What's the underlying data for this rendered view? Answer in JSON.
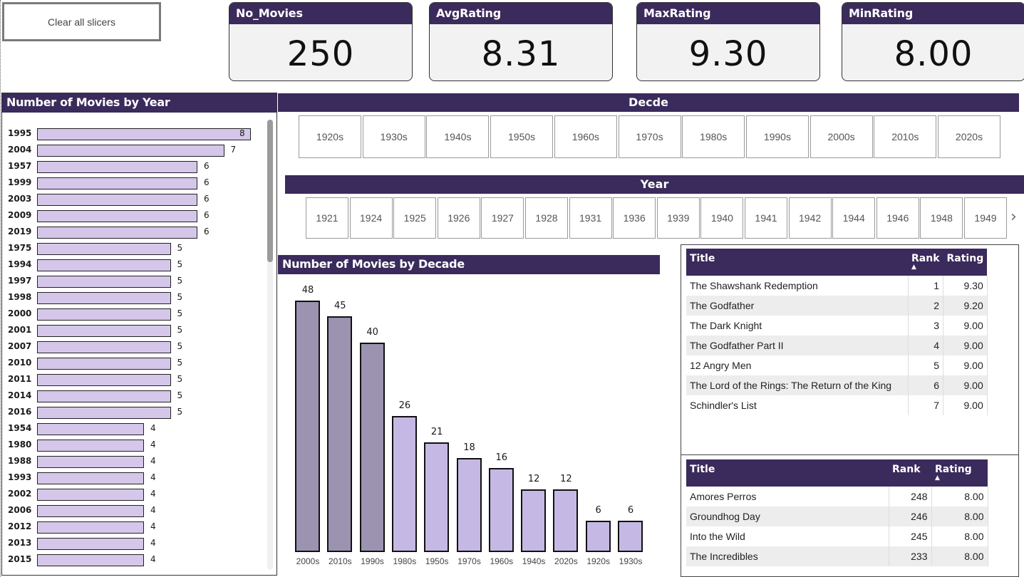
{
  "clear_button": "Clear all slicers",
  "kpis": [
    {
      "label": "No_Movies",
      "value": "250"
    },
    {
      "label": "AvgRating",
      "value": "8.31"
    },
    {
      "label": "MaxRating",
      "value": "9.30"
    },
    {
      "label": "MinRating",
      "value": "8.00"
    }
  ],
  "year_chart": {
    "title": "Number of Movies by Year",
    "rows": [
      {
        "year": "1995",
        "count": 8
      },
      {
        "year": "2004",
        "count": 7
      },
      {
        "year": "1957",
        "count": 6
      },
      {
        "year": "1999",
        "count": 6
      },
      {
        "year": "2003",
        "count": 6
      },
      {
        "year": "2009",
        "count": 6
      },
      {
        "year": "2019",
        "count": 6
      },
      {
        "year": "1975",
        "count": 5
      },
      {
        "year": "1994",
        "count": 5
      },
      {
        "year": "1997",
        "count": 5
      },
      {
        "year": "1998",
        "count": 5
      },
      {
        "year": "2000",
        "count": 5
      },
      {
        "year": "2001",
        "count": 5
      },
      {
        "year": "2007",
        "count": 5
      },
      {
        "year": "2010",
        "count": 5
      },
      {
        "year": "2011",
        "count": 5
      },
      {
        "year": "2014",
        "count": 5
      },
      {
        "year": "2016",
        "count": 5
      },
      {
        "year": "1954",
        "count": 4
      },
      {
        "year": "1980",
        "count": 4
      },
      {
        "year": "1988",
        "count": 4
      },
      {
        "year": "1993",
        "count": 4
      },
      {
        "year": "2002",
        "count": 4
      },
      {
        "year": "2006",
        "count": 4
      },
      {
        "year": "2012",
        "count": 4
      },
      {
        "year": "2013",
        "count": 4
      },
      {
        "year": "2015",
        "count": 4
      }
    ]
  },
  "decade_slicer": {
    "title": "Decde",
    "items": [
      "1920s",
      "1930s",
      "1940s",
      "1950s",
      "1960s",
      "1970s",
      "1980s",
      "1990s",
      "2000s",
      "2010s",
      "2020s"
    ]
  },
  "year_slicer": {
    "title": "Year",
    "items": [
      "1921",
      "1924",
      "1925",
      "1926",
      "1927",
      "1928",
      "1931",
      "1936",
      "1939",
      "1940",
      "1941",
      "1942",
      "1944",
      "1946",
      "1948",
      "1949"
    ],
    "next_icon": "chevron-right-icon"
  },
  "chart_data": {
    "type": "bar",
    "title": "Number of Movies by Decade",
    "categories": [
      "2000s",
      "2010s",
      "1990s",
      "1980s",
      "1950s",
      "1970s",
      "1960s",
      "1940s",
      "2020s",
      "1920s",
      "1930s"
    ],
    "values": [
      48,
      45,
      40,
      26,
      21,
      18,
      16,
      12,
      12,
      6,
      6
    ],
    "colors": {
      "highlight": "#9b93b0",
      "normal": "#c6b8e4"
    },
    "highlighted": [
      "2000s",
      "2010s",
      "1990s"
    ],
    "ylim": [
      0,
      48
    ]
  },
  "top_table": {
    "headers": [
      "Title",
      "Rank",
      "Rating"
    ],
    "rows": [
      [
        "The Shawshank Redemption",
        "1",
        "9.30"
      ],
      [
        "The Godfather",
        "2",
        "9.20"
      ],
      [
        "The Dark Knight",
        "3",
        "9.00"
      ],
      [
        "The Godfather Part II",
        "4",
        "9.00"
      ],
      [
        "12 Angry Men",
        "5",
        "9.00"
      ],
      [
        "The Lord of the Rings: The Return of the King",
        "6",
        "9.00"
      ],
      [
        "Schindler's List",
        "7",
        "9.00"
      ]
    ]
  },
  "bottom_table": {
    "headers": [
      "Title",
      "Rank",
      "Rating"
    ],
    "rows": [
      [
        "Amores Perros",
        "248",
        "8.00"
      ],
      [
        "Groundhog Day",
        "246",
        "8.00"
      ],
      [
        "Into the Wild",
        "245",
        "8.00"
      ],
      [
        "The Incredibles",
        "233",
        "8.00"
      ]
    ]
  },
  "colors": {
    "header": "#3b2a5c",
    "bar": "#d4c7ea"
  }
}
